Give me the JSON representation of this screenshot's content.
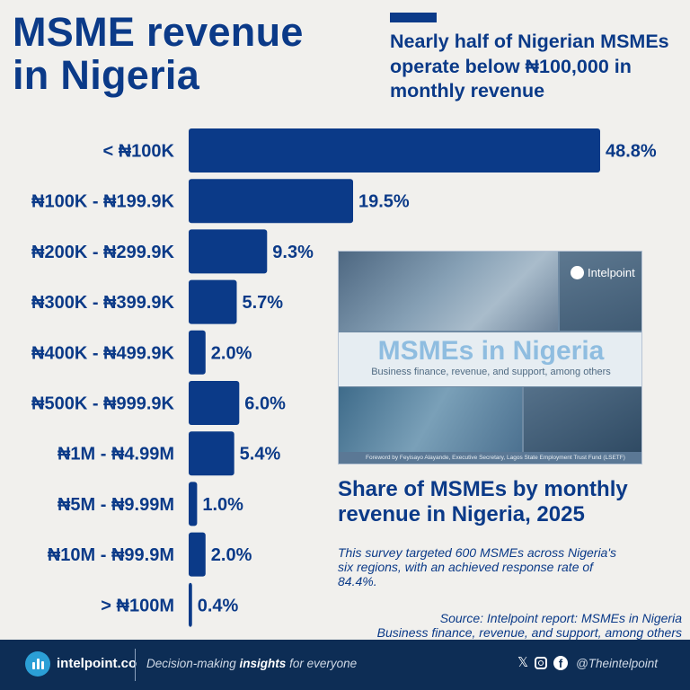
{
  "header": {
    "title_line1": "MSME revenue",
    "title_line2": "in Nigeria",
    "subtitle": "Nearly half of Nigerian MSMEs operate below ₦100,000 in monthly revenue"
  },
  "chart_data": {
    "type": "bar",
    "orientation": "horizontal",
    "title": "Share of MSMEs by monthly revenue in Nigeria, 2025",
    "xlabel": "",
    "ylabel": "",
    "value_suffix": "%",
    "xlim": [
      0,
      48.8
    ],
    "categories": [
      "< ₦100K",
      "₦100K - ₦199.9K",
      "₦200K - ₦299.9K",
      "₦300K - ₦399.9K",
      "₦400K - ₦499.9K",
      "₦500K - ₦999.9K",
      "₦1M - ₦4.99M",
      "₦5M - ₦9.99M",
      "₦10M - ₦99.9M",
      "> ₦100M"
    ],
    "values": [
      48.8,
      19.5,
      9.3,
      5.7,
      2.0,
      6.0,
      5.4,
      1.0,
      2.0,
      0.4
    ],
    "value_labels": [
      "48.8%",
      "19.5%",
      "9.3%",
      "5.7%",
      "2.0%",
      "6.0%",
      "5.4%",
      "1.0%",
      "2.0%",
      "0.4%"
    ],
    "color": "#0b3a88"
  },
  "report_cover": {
    "brand": "Intelpoint",
    "title": "MSMEs in Nigeria",
    "subtitle": "Business finance, revenue, and support, among others",
    "foreword": "Foreword by Feyisayo Alayande, Executive Secretary, Lagos State Employment Trust Fund (LSETF)"
  },
  "note": "This survey targeted 600 MSMEs across Nigeria's six regions, with an achieved response rate of 84.4%.",
  "source_line1": "Source: Intelpoint report: MSMEs in Nigeria",
  "source_line2": "Business finance, revenue, and support, among others",
  "footer": {
    "site": "intelpoint.co",
    "tagline_pre": "Decision-making ",
    "tagline_bold": "insights",
    "tagline_post": " for everyone",
    "x_glyph": "𝕏",
    "fb_glyph": "f",
    "handle": "@Theintelpoint"
  },
  "colors": {
    "brand": "#0b3a88",
    "background": "#f1f0ed",
    "footer": "#0d2d55",
    "accent": "#2b9fd6"
  }
}
